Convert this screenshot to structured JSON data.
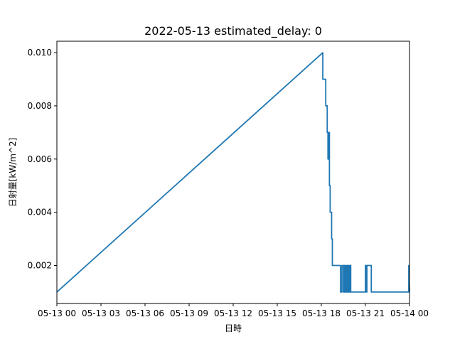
{
  "chart_data": {
    "type": "line",
    "title": "2022-05-13 estimated_delay: 0",
    "xlabel": "日時",
    "ylabel": "日射量[kW/m^2]",
    "x_tick_labels": [
      "05-13 00",
      "05-13 03",
      "05-13 06",
      "05-13 09",
      "05-13 12",
      "05-13 15",
      "05-13 18",
      "05-13 21",
      "05-14 00"
    ],
    "x_ticks_hours": [
      0,
      3,
      6,
      9,
      12,
      15,
      18,
      21,
      24
    ],
    "xlim_hours": [
      0,
      24
    ],
    "y_ticks": [
      0.002,
      0.004,
      0.006,
      0.008,
      0.01
    ],
    "y_tick_labels": [
      "0.002",
      "0.004",
      "0.006",
      "0.008",
      "0.010"
    ],
    "ylim": [
      0.00057,
      0.01043
    ],
    "grid": false,
    "line_color": "#1f77b4",
    "series": [
      {
        "x_hours": [
          0,
          18.1,
          18.1,
          18.3,
          18.3,
          18.4,
          18.4,
          18.45,
          18.45,
          18.5,
          18.5,
          18.55,
          18.55,
          18.6,
          18.6,
          18.7,
          18.7,
          18.75,
          18.75,
          18.8,
          18.8,
          18.85,
          18.85,
          18.9,
          18.9,
          18.95,
          18.95,
          19.3,
          19.3,
          19.4,
          19.4,
          19.5,
          19.5,
          19.55,
          19.55,
          19.6,
          19.6,
          19.65,
          19.65,
          19.7,
          19.7,
          19.75,
          19.75,
          19.8,
          19.8,
          19.85,
          19.85,
          19.9,
          19.9,
          19.95,
          19.95,
          20.0,
          20.0,
          21.0,
          21.0,
          21.05,
          21.05,
          21.1,
          21.1,
          21.4,
          21.4,
          23.95,
          23.95,
          24.0
        ],
        "y": [
          0.001,
          0.01,
          0.009,
          0.009,
          0.008,
          0.008,
          0.007,
          0.007,
          0.006,
          0.006,
          0.007,
          0.007,
          0.005,
          0.005,
          0.004,
          0.004,
          0.003,
          0.003,
          0.002,
          0.002,
          0.002,
          0.002,
          0.002,
          0.002,
          0.002,
          0.002,
          0.002,
          0.002,
          0.001,
          0.001,
          0.002,
          0.002,
          0.001,
          0.001,
          0.002,
          0.002,
          0.001,
          0.001,
          0.002,
          0.002,
          0.001,
          0.001,
          0.002,
          0.002,
          0.001,
          0.001,
          0.002,
          0.002,
          0.001,
          0.001,
          0.002,
          0.002,
          0.001,
          0.001,
          0.002,
          0.002,
          0.001,
          0.001,
          0.002,
          0.002,
          0.001,
          0.001,
          0.002,
          0.001
        ]
      }
    ]
  }
}
